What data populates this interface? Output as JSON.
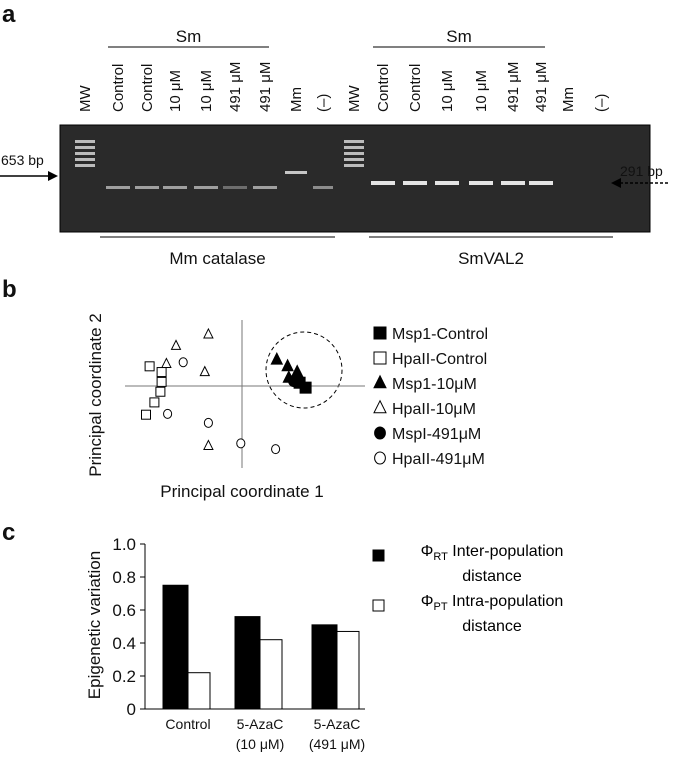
{
  "panel_labels": [
    "a",
    "b",
    "c"
  ],
  "gel": {
    "left": {
      "lanes": [
        "MW",
        "Control",
        "Control",
        "10 μM",
        "10 μM",
        "491 μM",
        "491 μM",
        "Mm",
        "(–)"
      ],
      "group": "Sm",
      "gene": "Mm catalase",
      "marker": "653 bp"
    },
    "right": {
      "lanes": [
        "MW",
        "Control",
        "Control",
        "10 μM",
        "10 μM",
        "491 μM",
        "491 μM",
        "Mm",
        "(–)"
      ],
      "group": "Sm",
      "gene": "SmVAL2",
      "marker": "291 bp"
    }
  },
  "chart_data": [
    {
      "type": "scatter",
      "xlabel": "Principal coordinate 1",
      "ylabel": "Principal coordinate 2",
      "xlim": [
        -1,
        1
      ],
      "ylim": [
        -1,
        1
      ],
      "series": [
        {
          "name": "Msp1-Control",
          "marker": "square",
          "filled": true,
          "color": "#000000",
          "x": [
            0.53,
            0.48
          ],
          "y": [
            -0.02,
            0.04
          ]
        },
        {
          "name": "HpaII-Control",
          "marker": "square",
          "filled": false,
          "color": "#000000",
          "x": [
            -0.77,
            -0.67,
            -0.67,
            -0.68,
            -0.73,
            -0.8
          ],
          "y": [
            0.24,
            0.17,
            0.05,
            -0.07,
            -0.2,
            -0.35
          ]
        },
        {
          "name": "Msp1-10μM",
          "marker": "triangle",
          "filled": true,
          "color": "#000000",
          "x": [
            0.29,
            0.38,
            0.46,
            0.39
          ],
          "y": [
            0.32,
            0.24,
            0.17,
            0.1
          ]
        },
        {
          "name": "HpaII-10μM",
          "marker": "triangle",
          "filled": false,
          "color": "#000000",
          "x": [
            -0.55,
            -0.28,
            -0.63,
            -0.31,
            -0.28
          ],
          "y": [
            0.49,
            0.63,
            0.27,
            0.17,
            -0.73
          ]
        },
        {
          "name": "MspI-491μM",
          "marker": "circle",
          "filled": true,
          "color": "#000000",
          "x": [
            0.46,
            0.43
          ],
          "y": [
            0.07,
            0.06
          ]
        },
        {
          "name": "HpaII-491μM",
          "marker": "circle",
          "filled": false,
          "color": "#000000",
          "x": [
            -0.49,
            -0.62,
            -0.28,
            -0.01,
            0.28
          ],
          "y": [
            0.29,
            -0.34,
            -0.45,
            -0.7,
            -0.77
          ]
        }
      ]
    },
    {
      "type": "bar",
      "ylabel": "Epigenetic variation",
      "categories": [
        [
          "Control"
        ],
        [
          "5-AzaC",
          "(10 μM)"
        ],
        [
          "5-AzaC",
          "(491 μM)"
        ]
      ],
      "ylim": [
        0,
        1
      ],
      "yticks": [
        0,
        0.2,
        0.4,
        0.6,
        0.8,
        {
          "value": 1,
          "label": "1.0"
        }
      ],
      "series": [
        {
          "symbol": "Φ",
          "sub": "RT",
          "name": "Inter-population distance",
          "color": "#000000",
          "values": [
            0.75,
            0.56,
            0.51
          ]
        },
        {
          "symbol": "Φ",
          "sub": "PT",
          "name": "Intra-population distance",
          "color": "#ffffff",
          "values": [
            0.22,
            0.42,
            0.47
          ]
        }
      ]
    }
  ]
}
